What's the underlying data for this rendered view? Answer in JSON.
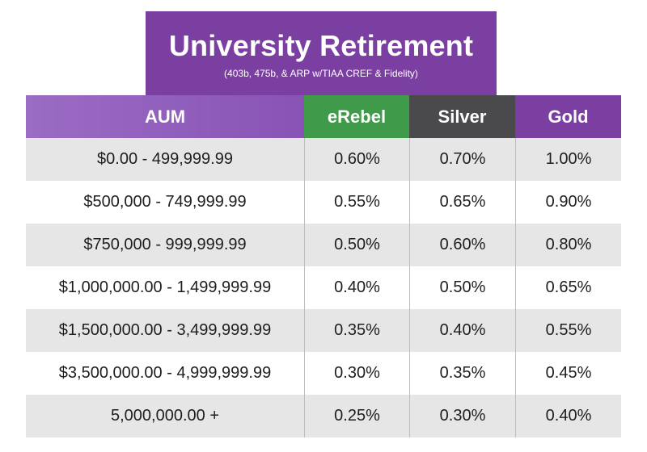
{
  "banner": {
    "title": "University Retirement",
    "subtitle": "(403b, 475b, & ARP w/TIAA CREF & Fidelity)"
  },
  "table": {
    "headers": [
      "AUM",
      "eRebel",
      "Silver",
      "Gold"
    ],
    "header_colors": {
      "AUM": "#8f5cbb",
      "eRebel": "#3f9a4a",
      "Silver": "#4a4a4c",
      "Gold": "#7a3fa0"
    },
    "rows": [
      [
        "$0.00 - 499,999.99",
        "0.60%",
        "0.70%",
        "1.00%"
      ],
      [
        "$500,000 - 749,999.99",
        "0.55%",
        "0.65%",
        "0.90%"
      ],
      [
        "$750,000 - 999,999.99",
        "0.50%",
        "0.60%",
        "0.80%"
      ],
      [
        "$1,000,000.00 - 1,499,999.99",
        "0.40%",
        "0.50%",
        "0.65%"
      ],
      [
        "$1,500,000.00 - 3,499,999.99",
        "0.35%",
        "0.40%",
        "0.55%"
      ],
      [
        "$3,500,000.00 - 4,999,999.99",
        "0.30%",
        "0.35%",
        "0.45%"
      ],
      [
        "5,000,000.00 +",
        "0.25%",
        "0.30%",
        "0.40%"
      ]
    ]
  }
}
